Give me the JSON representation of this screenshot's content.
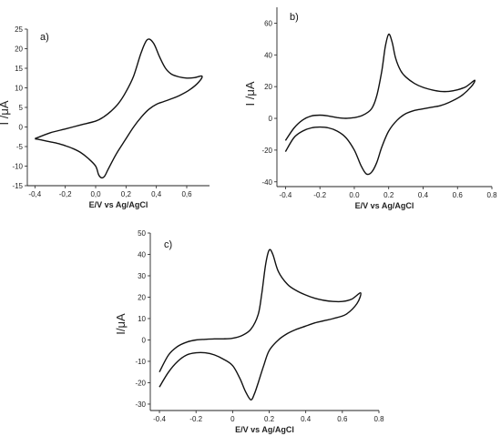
{
  "chart_data": [
    {
      "type": "line",
      "panel_label": "a)",
      "xlabel": "E/V vs Ag/AgCl",
      "ylabel": "I /μA",
      "xlim": [
        -0.45,
        0.75
      ],
      "ylim": [
        -15,
        25
      ],
      "xticks": [
        -0.4,
        -0.2,
        0.0,
        0.2,
        0.4,
        0.6
      ],
      "xtick_labels": [
        "-0,4",
        "-0,2",
        "0,0",
        "0,2",
        "0,4",
        "0,6"
      ],
      "yticks": [
        -15,
        -10,
        -5,
        0,
        5,
        10,
        15,
        20,
        25
      ],
      "ytick_labels": [
        "-15",
        "-10",
        "-5",
        "0",
        "5",
        "10",
        "15",
        "20",
        "25"
      ],
      "series": [
        {
          "x": [
            -0.4,
            -0.3,
            -0.2,
            -0.1,
            0.0,
            0.05,
            0.1,
            0.15,
            0.2,
            0.25,
            0.3,
            0.34,
            0.38,
            0.42,
            0.46,
            0.5,
            0.55,
            0.6,
            0.65,
            0.7,
            0.68,
            0.62,
            0.55,
            0.5,
            0.45,
            0.4,
            0.35,
            0.3,
            0.25,
            0.2,
            0.15,
            0.12,
            0.08,
            0.06,
            0.04,
            0.02,
            0.0,
            -0.05,
            -0.1,
            -0.15,
            -0.2,
            -0.25,
            -0.3,
            -0.35,
            -0.4
          ],
          "y": [
            -3,
            -1.5,
            -0.5,
            0.5,
            1.5,
            2.5,
            4,
            6,
            9,
            13,
            19,
            22.3,
            21.5,
            18,
            15,
            13.5,
            12.8,
            12.5,
            12.6,
            13,
            11.5,
            9.5,
            8,
            7.2,
            6.5,
            5.8,
            4.5,
            2.5,
            0,
            -3,
            -6,
            -8,
            -11,
            -12.5,
            -13,
            -12.2,
            -10,
            -8,
            -6.5,
            -5.5,
            -4.8,
            -4.2,
            -3.8,
            -3.4,
            -3
          ]
        }
      ]
    },
    {
      "type": "line",
      "panel_label": "b)",
      "xlabel": "E/V vs Ag/AgCl",
      "ylabel": "I /μA",
      "xlim": [
        -0.45,
        0.8
      ],
      "ylim": [
        -43,
        70
      ],
      "xticks": [
        -0.4,
        -0.2,
        0.0,
        0.2,
        0.4,
        0.6,
        0.8
      ],
      "xtick_labels": [
        "-0.4",
        "-0.2",
        "0.0",
        "0.2",
        "0.4",
        "0.6",
        "0.8"
      ],
      "yticks": [
        -40,
        -20,
        0,
        20,
        40,
        60
      ],
      "ytick_labels": [
        "-40",
        "-20",
        "0",
        "20",
        "40",
        "60"
      ],
      "series": [
        {
          "x": [
            -0.4,
            -0.35,
            -0.3,
            -0.25,
            -0.2,
            -0.15,
            -0.1,
            -0.05,
            0.0,
            0.05,
            0.1,
            0.13,
            0.16,
            0.18,
            0.2,
            0.22,
            0.24,
            0.27,
            0.3,
            0.35,
            0.4,
            0.45,
            0.5,
            0.55,
            0.6,
            0.65,
            0.7,
            0.68,
            0.62,
            0.55,
            0.5,
            0.45,
            0.4,
            0.35,
            0.3,
            0.25,
            0.2,
            0.16,
            0.13,
            0.1,
            0.07,
            0.04,
            0.0,
            -0.05,
            -0.1,
            -0.15,
            -0.2,
            -0.25,
            -0.3,
            -0.35,
            -0.4
          ],
          "y": [
            -14,
            -6,
            -1,
            1.5,
            2,
            1.5,
            0.5,
            0,
            0.5,
            2,
            6,
            14,
            30,
            45,
            53,
            48,
            38,
            30,
            26,
            22,
            19.5,
            18,
            17,
            17,
            18,
            20,
            24,
            20,
            14,
            10,
            8,
            7,
            6,
            5,
            3,
            -1,
            -8,
            -18,
            -28,
            -34,
            -35,
            -30,
            -20,
            -12,
            -8,
            -6,
            -5.5,
            -6,
            -8,
            -12,
            -21
          ]
        }
      ]
    },
    {
      "type": "line",
      "panel_label": "c)",
      "xlabel": "E/V vs Ag/AgCl",
      "ylabel": "I/μA",
      "xlim": [
        -0.45,
        0.8
      ],
      "ylim": [
        -33,
        50
      ],
      "xticks": [
        -0.4,
        -0.2,
        0.0,
        0.2,
        0.4,
        0.6,
        0.8
      ],
      "xtick_labels": [
        "-0.4",
        "-0.2",
        "0",
        "0.2",
        "0.4",
        "0.6",
        "0.8"
      ],
      "yticks": [
        -30,
        -20,
        -10,
        0,
        10,
        20,
        30,
        40,
        50
      ],
      "ytick_labels": [
        "-30",
        "-20",
        "-10",
        "0",
        "10",
        "20",
        "30",
        "40",
        "50"
      ],
      "series": [
        {
          "x": [
            -0.4,
            -0.35,
            -0.3,
            -0.25,
            -0.2,
            -0.15,
            -0.1,
            -0.05,
            0.0,
            0.05,
            0.1,
            0.14,
            0.16,
            0.18,
            0.2,
            0.22,
            0.25,
            0.3,
            0.35,
            0.4,
            0.45,
            0.5,
            0.55,
            0.6,
            0.65,
            0.7,
            0.68,
            0.62,
            0.55,
            0.5,
            0.45,
            0.4,
            0.35,
            0.3,
            0.25,
            0.2,
            0.17,
            0.14,
            0.12,
            0.1,
            0.07,
            0.04,
            0.0,
            -0.05,
            -0.1,
            -0.15,
            -0.2,
            -0.25,
            -0.3,
            -0.35,
            -0.4
          ],
          "y": [
            -15,
            -7,
            -3,
            -1,
            0,
            0.3,
            0.5,
            0.5,
            0.8,
            2,
            5,
            12,
            22,
            35,
            42,
            40,
            32,
            26,
            23,
            21,
            19.5,
            18.5,
            18,
            18,
            19,
            22,
            17,
            12,
            10,
            9,
            8,
            6.5,
            5,
            3,
            0,
            -5,
            -12,
            -20,
            -25,
            -28,
            -24,
            -18,
            -12,
            -9,
            -7,
            -6,
            -6,
            -7,
            -10,
            -15,
            -22
          ]
        }
      ]
    }
  ]
}
